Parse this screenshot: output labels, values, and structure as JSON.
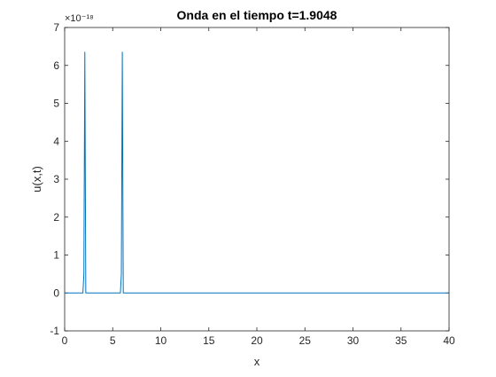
{
  "chart_data": {
    "type": "line",
    "title": "Onda en el tiempo t=1.9048",
    "xlabel": "x",
    "ylabel": "u(x,t)",
    "xlim": [
      0,
      40
    ],
    "ylim": [
      -1,
      7
    ],
    "y_exponent_label": "×10⁻¹⁸",
    "xticks": [
      0,
      5,
      10,
      15,
      20,
      25,
      30,
      35,
      40
    ],
    "yticks": [
      -1,
      0,
      1,
      2,
      3,
      4,
      5,
      6,
      7
    ],
    "grid": false,
    "line_color": "#0072BD",
    "series": [
      {
        "x": [
          0,
          1.9,
          2.0,
          2.1,
          2.2,
          5.8,
          5.9,
          6.0,
          6.1,
          40
        ],
        "y": [
          0,
          0,
          0.5,
          6.35,
          0,
          0,
          0.5,
          6.35,
          0,
          0
        ]
      }
    ]
  }
}
